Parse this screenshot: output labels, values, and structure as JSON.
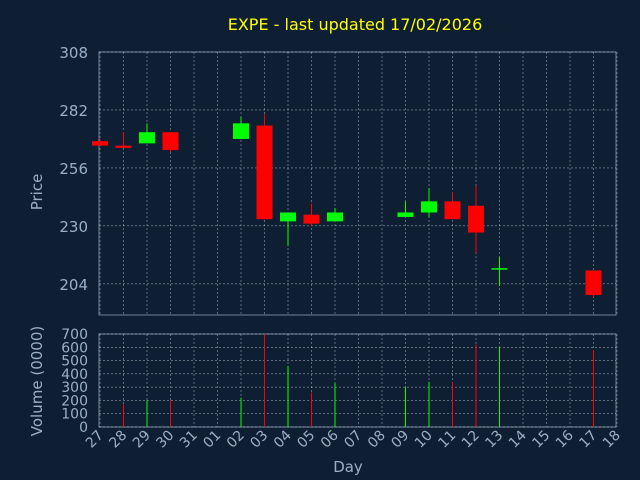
{
  "chart_data": [
    {
      "type": "candlestick",
      "title": "EXPE - last updated 17/02/2026",
      "ylabel": "Price",
      "ylim": [
        190,
        308
      ],
      "yticks": [
        204,
        230,
        256,
        282,
        308
      ],
      "grid": true,
      "colors": {
        "up": "#00ff00",
        "down": "#ff0000",
        "title": "#ffff00",
        "axis_text": "#9ab0c8",
        "background": "#0f1f33",
        "grid": "#ffffff"
      },
      "x": [
        "27",
        "28",
        "29",
        "30",
        "31",
        "01",
        "02",
        "03",
        "04",
        "05",
        "06",
        "07",
        "08",
        "09",
        "10",
        "11",
        "12",
        "13",
        "14",
        "15",
        "16",
        "17",
        "18"
      ],
      "candles": [
        {
          "x": "27",
          "open": 268,
          "high": 269,
          "low": 266,
          "close": 266
        },
        {
          "x": "28",
          "open": 266,
          "high": 272,
          "low": 265,
          "close": 265
        },
        {
          "x": "29",
          "open": 267,
          "high": 276,
          "low": 267,
          "close": 272
        },
        {
          "x": "30",
          "open": 272,
          "high": 272,
          "low": 263,
          "close": 264
        },
        {
          "x": "02",
          "open": 269,
          "high": 279,
          "low": 269,
          "close": 276
        },
        {
          "x": "03",
          "open": 275,
          "high": 280,
          "low": 233,
          "close": 233
        },
        {
          "x": "04",
          "open": 232,
          "high": 236,
          "low": 221,
          "close": 236
        },
        {
          "x": "05",
          "open": 235,
          "high": 240,
          "low": 230,
          "close": 231
        },
        {
          "x": "06",
          "open": 232,
          "high": 238,
          "low": 232,
          "close": 236
        },
        {
          "x": "09",
          "open": 234,
          "high": 241,
          "low": 234,
          "close": 236
        },
        {
          "x": "10",
          "open": 236,
          "high": 247,
          "low": 234,
          "close": 241
        },
        {
          "x": "11",
          "open": 241,
          "high": 245,
          "low": 233,
          "close": 233
        },
        {
          "x": "12",
          "open": 239,
          "high": 248,
          "low": 218,
          "close": 227
        },
        {
          "x": "13",
          "open": 211,
          "high": 216,
          "low": 203,
          "close": 211
        },
        {
          "x": "17",
          "open": 210,
          "high": 210,
          "low": 198,
          "close": 199
        }
      ]
    },
    {
      "type": "bar",
      "ylabel": "Volume (0000)",
      "xlabel": "Day",
      "ylim": [
        0,
        700
      ],
      "yticks": [
        0,
        100,
        200,
        300,
        400,
        500,
        600,
        700
      ],
      "grid": true,
      "categories": [
        "27",
        "28",
        "29",
        "30",
        "31",
        "01",
        "02",
        "03",
        "04",
        "05",
        "06",
        "07",
        "08",
        "09",
        "10",
        "11",
        "12",
        "13",
        "14",
        "15",
        "16",
        "17",
        "18"
      ],
      "volumes": [
        {
          "x": "28",
          "value": 170,
          "dir": "down"
        },
        {
          "x": "29",
          "value": 200,
          "dir": "up"
        },
        {
          "x": "30",
          "value": 200,
          "dir": "down"
        },
        {
          "x": "02",
          "value": 220,
          "dir": "up"
        },
        {
          "x": "03",
          "value": 700,
          "dir": "down"
        },
        {
          "x": "04",
          "value": 460,
          "dir": "up"
        },
        {
          "x": "05",
          "value": 260,
          "dir": "down"
        },
        {
          "x": "06",
          "value": 330,
          "dir": "up"
        },
        {
          "x": "09",
          "value": 300,
          "dir": "up"
        },
        {
          "x": "10",
          "value": 340,
          "dir": "up"
        },
        {
          "x": "11",
          "value": 340,
          "dir": "down"
        },
        {
          "x": "12",
          "value": 620,
          "dir": "down"
        },
        {
          "x": "13",
          "value": 600,
          "dir": "up"
        },
        {
          "x": "17",
          "value": 580,
          "dir": "down"
        }
      ]
    }
  ]
}
